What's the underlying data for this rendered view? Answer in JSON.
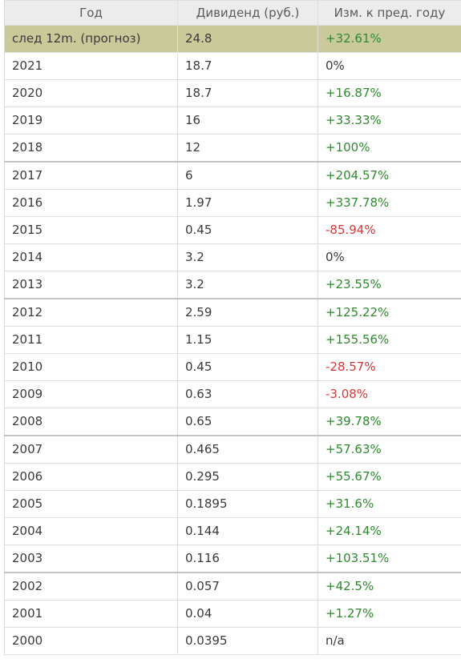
{
  "table": {
    "headers": [
      "Год",
      "Дивиденд (руб.)",
      "Изм. к пред. году"
    ],
    "rows": [
      {
        "year": "след 12m. (прогноз)",
        "dividend": "24.8",
        "change": "+32.61%",
        "trend": "pos",
        "forecast": true
      },
      {
        "year": "2021",
        "dividend": "18.7",
        "change": "0%",
        "trend": "neu"
      },
      {
        "year": "2020",
        "dividend": "18.7",
        "change": "+16.87%",
        "trend": "pos"
      },
      {
        "year": "2019",
        "dividend": "16",
        "change": "+33.33%",
        "trend": "pos"
      },
      {
        "year": "2018",
        "dividend": "12",
        "change": "+100%",
        "trend": "pos"
      },
      {
        "year": "2017",
        "dividend": "6",
        "change": "+204.57%",
        "trend": "pos",
        "group_start": true
      },
      {
        "year": "2016",
        "dividend": "1.97",
        "change": "+337.78%",
        "trend": "pos"
      },
      {
        "year": "2015",
        "dividend": "0.45",
        "change": "-85.94%",
        "trend": "neg"
      },
      {
        "year": "2014",
        "dividend": "3.2",
        "change": "0%",
        "trend": "neu"
      },
      {
        "year": "2013",
        "dividend": "3.2",
        "change": "+23.55%",
        "trend": "pos"
      },
      {
        "year": "2012",
        "dividend": "2.59",
        "change": "+125.22%",
        "trend": "pos",
        "group_start": true
      },
      {
        "year": "2011",
        "dividend": "1.15",
        "change": "+155.56%",
        "trend": "pos"
      },
      {
        "year": "2010",
        "dividend": "0.45",
        "change": "-28.57%",
        "trend": "neg"
      },
      {
        "year": "2009",
        "dividend": "0.63",
        "change": "-3.08%",
        "trend": "neg"
      },
      {
        "year": "2008",
        "dividend": "0.65",
        "change": "+39.78%",
        "trend": "pos"
      },
      {
        "year": "2007",
        "dividend": "0.465",
        "change": "+57.63%",
        "trend": "pos",
        "group_start": true
      },
      {
        "year": "2006",
        "dividend": "0.295",
        "change": "+55.67%",
        "trend": "pos"
      },
      {
        "year": "2005",
        "dividend": "0.1895",
        "change": "+31.6%",
        "trend": "pos"
      },
      {
        "year": "2004",
        "dividend": "0.144",
        "change": "+24.14%",
        "trend": "pos"
      },
      {
        "year": "2003",
        "dividend": "0.116",
        "change": "+103.51%",
        "trend": "pos"
      },
      {
        "year": "2002",
        "dividend": "0.057",
        "change": "+42.5%",
        "trend": "pos",
        "group_start": true
      },
      {
        "year": "2001",
        "dividend": "0.04",
        "change": "+1.27%",
        "trend": "pos"
      },
      {
        "year": "2000",
        "dividend": "0.0395",
        "change": "n/a",
        "trend": "neu"
      }
    ]
  },
  "colors": {
    "header_bg": "#ececec",
    "forecast_bg": "#c9c99a",
    "positive": "#2f8a2f",
    "negative": "#d93636"
  }
}
